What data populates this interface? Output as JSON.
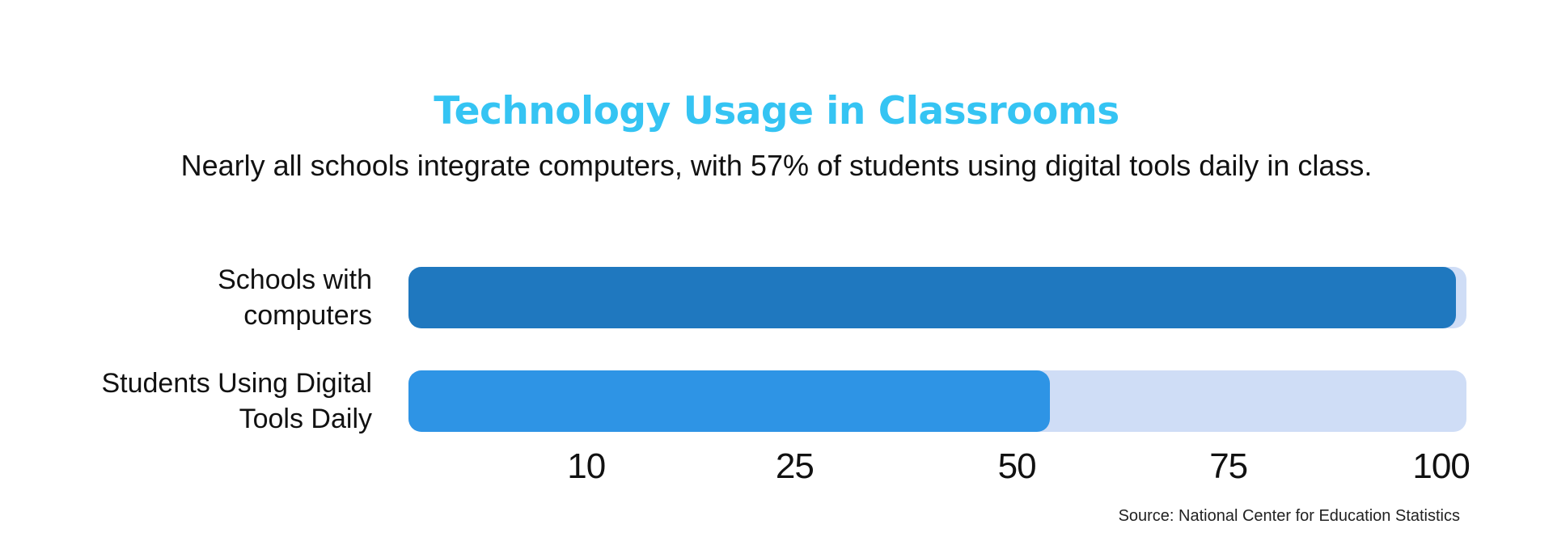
{
  "header": {
    "title": "Technology Usage in Classrooms",
    "subtitle": "Nearly all schools integrate computers, with 57% of students using digital tools daily in class."
  },
  "footer": {
    "source": "Source: National Center for Education Statistics"
  },
  "colors": {
    "title": "#35C4F3",
    "bar_schools": "#1F78BF",
    "bar_students": "#2E94E5",
    "track": "#CFDDF6",
    "text": "#111111"
  },
  "chart_data": {
    "type": "bar",
    "orientation": "horizontal",
    "title": "Technology Usage in Classrooms",
    "subtitle": "Nearly all schools integrate computers, with 57% of students using digital tools daily in class.",
    "unit": "percent",
    "xlim": [
      0,
      100
    ],
    "tick_labels": [
      "10",
      "25",
      "50",
      "75",
      "100"
    ],
    "grid": false,
    "legend": false,
    "source": "Source: National Center for Education Statistics",
    "rows": [
      {
        "category": "Schools with computers",
        "label_lines": [
          "Schools with",
          "computers"
        ],
        "value": 100
      },
      {
        "category": "Students Using Digital Tools Daily",
        "label_lines": [
          "Students Using Digital",
          "Tools Daily"
        ],
        "value": 57
      }
    ]
  }
}
